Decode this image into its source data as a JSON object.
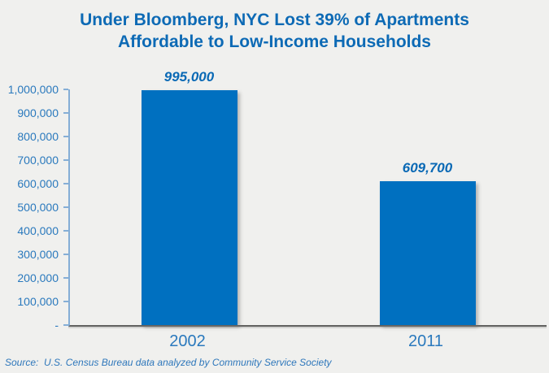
{
  "chart_data": {
    "type": "bar",
    "title": "Under Bloomberg, NYC Lost 39% of Apartments Affordable to Low-Income Households",
    "title_lines": [
      "Under Bloomberg, NYC Lost 39% of Apartments",
      "Affordable to Low-Income Households"
    ],
    "categories": [
      "2002",
      "2011"
    ],
    "values": [
      995000,
      609700
    ],
    "value_labels": [
      "995,000",
      "609,700"
    ],
    "xlabel": "",
    "ylabel": "",
    "ylim": [
      0,
      1000000
    ],
    "y_axis": {
      "min": 0,
      "max": 1000000,
      "step": 100000,
      "tick_labels": [
        "-",
        "100,000",
        "200,000",
        "300,000",
        "400,000",
        "500,000",
        "600,000",
        "700,000",
        "800,000",
        "900,000",
        "1,000,000"
      ]
    },
    "grid": false,
    "legend_position": "none",
    "source": "Source:  U.S. Census Bureau data analyzed by Community Service Society",
    "colors": {
      "bar": "#0070c0",
      "title": "#0d6ab5",
      "axis_labels": "#2a79bd",
      "value_labels": "#0a69b5",
      "y_axis_line": "#85aed6",
      "x_axis_line": "#626260",
      "source_text": "#2e77bb",
      "background": "#f0f0ee"
    }
  }
}
